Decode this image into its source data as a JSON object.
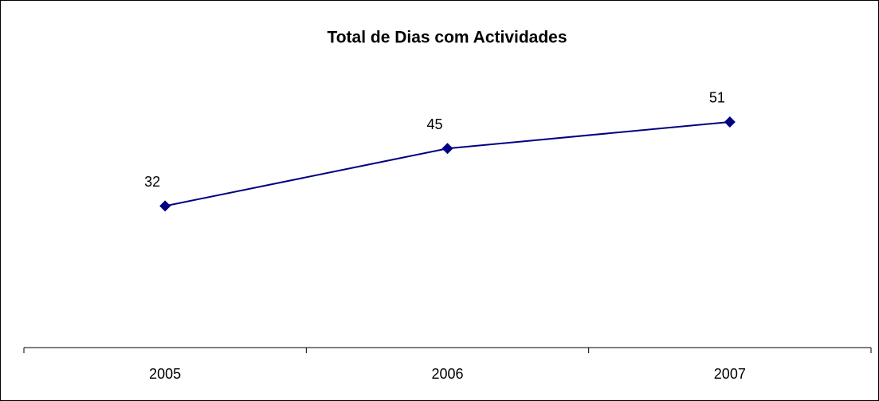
{
  "chart_data": {
    "type": "line",
    "title": "Total de Dias com Actividades",
    "categories": [
      "2005",
      "2006",
      "2007"
    ],
    "series": [
      {
        "name": null,
        "color": "#000080",
        "values": [
          32,
          45,
          51
        ]
      }
    ],
    "ylim": [
      0,
      60
    ]
  }
}
